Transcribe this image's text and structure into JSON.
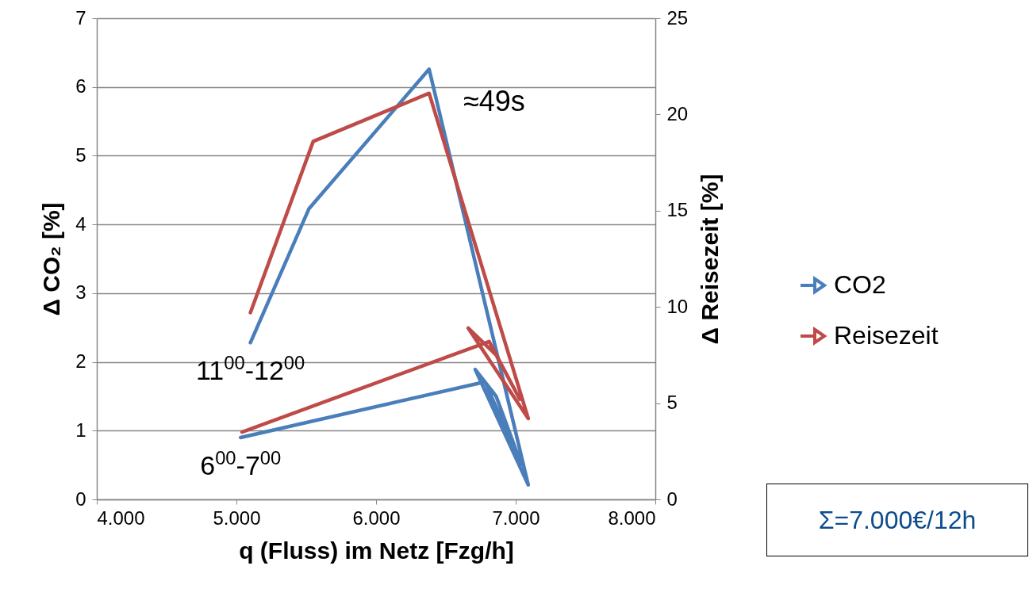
{
  "chart_data": {
    "type": "line",
    "xlabel": "q (Fluss) im Netz [Fzg/h]",
    "ylabel": "Δ CO₂ [%]",
    "y2label": "Δ Reisezeit [%]",
    "xlim": [
      4000,
      8000
    ],
    "xticks": [
      {
        "value": 4000,
        "label": "4.000"
      },
      {
        "value": 5000,
        "label": "5.000"
      },
      {
        "value": 6000,
        "label": "6.000"
      },
      {
        "value": 7000,
        "label": "7.000"
      },
      {
        "value": 8000,
        "label": "8.000"
      }
    ],
    "ylim": [
      0,
      7
    ],
    "yticks": [
      0,
      1,
      2,
      3,
      4,
      5,
      6,
      7
    ],
    "y2lim": [
      0,
      25
    ],
    "y2ticks": [
      0,
      5,
      10,
      15,
      20,
      25
    ],
    "grid": "y",
    "legend": "right",
    "series": [
      {
        "name": "CO2",
        "color": "#4a7ebb",
        "x": [
          5030,
          6780,
          7040,
          6860,
          6710,
          7090,
          6380,
          5520,
          5100
        ],
        "values": [
          0.9,
          1.71,
          0.51,
          1.5,
          1.89,
          0.21,
          6.26,
          4.23,
          2.28
        ]
      },
      {
        "name": "Reisezeit",
        "color": "#be4b48",
        "axis": "y2",
        "x": [
          5040,
          6810,
          7030,
          6860,
          6660,
          7090,
          6380,
          5550,
          5100
        ],
        "values": [
          3.5,
          8.2,
          5.2,
          7.5,
          8.9,
          4.2,
          21.1,
          18.6,
          9.7
        ]
      }
    ],
    "annotations": [
      {
        "text": "6$^{00}$-7$^{00}$",
        "x": 5030,
        "y": 0.9
      },
      {
        "text": "11$^{00}$-12$^{00}$",
        "x": 5100,
        "y": 2.28
      },
      "≈49s",
      "Σ=7.000€/12h"
    ]
  }
}
